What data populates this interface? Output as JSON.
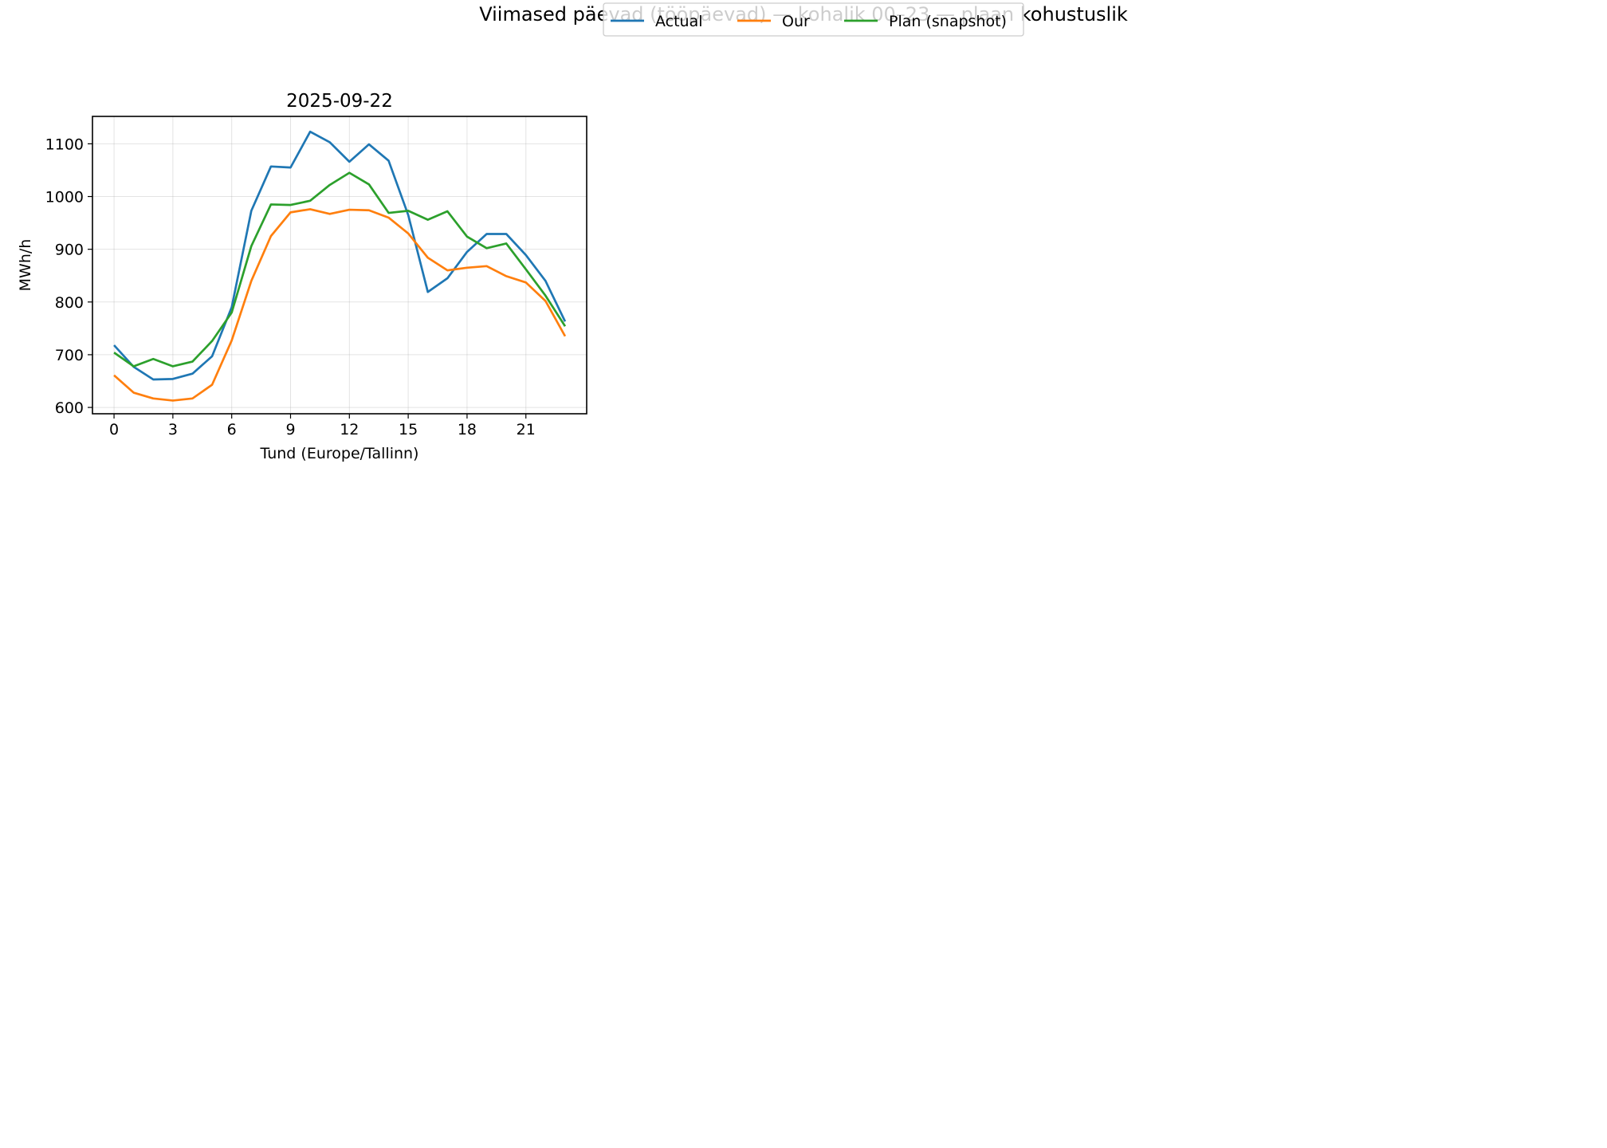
{
  "figure": {
    "suptitle": "Viimased päevad (tööpäevad) — kohalik 00–23 — plaan kohustuslik"
  },
  "chart_data": {
    "type": "line",
    "title": "2025-09-22",
    "xlabel": "Tund (Europe/Tallinn)",
    "ylabel": "MWh/h",
    "xlim": [
      -1.1,
      24.1
    ],
    "ylim": [
      588,
      1152
    ],
    "xticks": [
      0,
      3,
      6,
      9,
      12,
      15,
      18,
      21
    ],
    "yticks": [
      600,
      700,
      800,
      900,
      1000,
      1100
    ],
    "grid": true,
    "legend": {
      "placement": "upper-center",
      "ncol": 3
    },
    "x": [
      0,
      1,
      2,
      3,
      4,
      5,
      6,
      7,
      8,
      9,
      10,
      11,
      12,
      13,
      14,
      15,
      16,
      17,
      18,
      19,
      20,
      21,
      22,
      23
    ],
    "series": [
      {
        "name": "Actual",
        "color": "#1f77b4",
        "values": [
          718,
          677,
          653,
          654,
          664,
          697,
          790,
          973,
          1057,
          1055,
          1123,
          1103,
          1066,
          1099,
          1068,
          965,
          819,
          845,
          895,
          929,
          929,
          889,
          840,
          763
        ]
      },
      {
        "name": "Our",
        "color": "#ff7f0e",
        "values": [
          661,
          628,
          617,
          613,
          617,
          643,
          727,
          840,
          925,
          970,
          976,
          967,
          975,
          974,
          960,
          930,
          884,
          860,
          865,
          868,
          849,
          837,
          802,
          735
        ]
      },
      {
        "name": "Plan (snapshot)",
        "color": "#2ca02c",
        "values": [
          704,
          678,
          692,
          678,
          687,
          726,
          780,
          906,
          985,
          984,
          992,
          1022,
          1045,
          1023,
          969,
          973,
          956,
          972,
          924,
          902,
          911,
          862,
          812,
          754
        ]
      }
    ]
  }
}
